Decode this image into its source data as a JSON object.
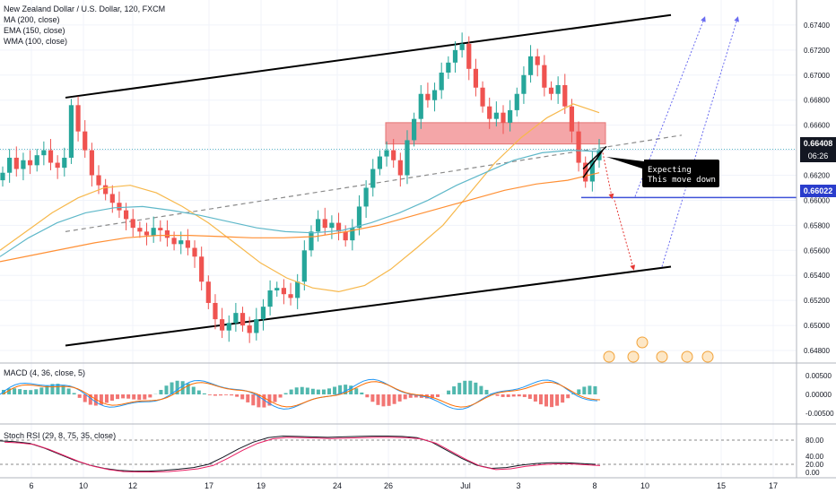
{
  "legend": {
    "title": "New Zealand Dollar / U.S. Dollar, 120, FXCM",
    "ma": "MA (200, close)",
    "ema": "EMA (150, close)",
    "wma": "WMA (100, close)"
  },
  "macd_label": "MACD (4, 36, close, 5)",
  "stoch_label": "Stoch RSI (29, 8, 75, 35, close)",
  "annotation": [
    "Expecting",
    "This move down"
  ],
  "badges": {
    "current_price": "0.66408",
    "countdown": "06:26",
    "target_price": "0.66022"
  },
  "colors": {
    "up": "#26a69a",
    "down": "#ef5350",
    "ma": "#f7b84b",
    "ema": "#5fb8c9",
    "wma": "#ff9035",
    "channel": "#000000",
    "zone": "#f4a6a8",
    "target_line": "#3f51d8",
    "projection": "#6a6cf0",
    "price_badge": "#131722",
    "target_badge": "#2a3dcc"
  },
  "chart_data": [
    {
      "type": "candlestick",
      "title": "New Zealand Dollar / U.S. Dollar, 120, FXCM",
      "ylim": [
        0.647,
        0.676
      ],
      "y_ticks": [
        "0.67400",
        "0.67200",
        "0.67000",
        "0.66800",
        "0.66600",
        "0.66400",
        "0.66200",
        "0.66000",
        "0.65800",
        "0.65600",
        "0.65400",
        "0.65200",
        "0.65000",
        "0.64800"
      ],
      "x_ticks": [
        "6",
        "10",
        "12",
        "17",
        "19",
        "24",
        "26",
        "Jul",
        "3",
        "8",
        "10",
        "15",
        "17"
      ],
      "series_close": [
        0.6622,
        0.6634,
        0.6625,
        0.6632,
        0.6628,
        0.6636,
        0.664,
        0.663,
        0.6626,
        0.6634,
        0.6676,
        0.6655,
        0.664,
        0.662,
        0.6612,
        0.6605,
        0.6598,
        0.6592,
        0.6585,
        0.6578,
        0.6575,
        0.6572,
        0.6578,
        0.6576,
        0.657,
        0.6565,
        0.6568,
        0.6562,
        0.6555,
        0.6535,
        0.6518,
        0.6505,
        0.6496,
        0.6502,
        0.651,
        0.65,
        0.6494,
        0.6505,
        0.6515,
        0.6528,
        0.653,
        0.6525,
        0.6522,
        0.6535,
        0.656,
        0.6575,
        0.6585,
        0.6578,
        0.6582,
        0.6575,
        0.6568,
        0.6578,
        0.6595,
        0.661,
        0.6625,
        0.6635,
        0.664,
        0.6632,
        0.662,
        0.6648,
        0.6665,
        0.6685,
        0.668,
        0.6688,
        0.6702,
        0.671,
        0.672,
        0.6725,
        0.6705,
        0.669,
        0.6675,
        0.6665,
        0.667,
        0.6662,
        0.6672,
        0.6685,
        0.67,
        0.6715,
        0.6708,
        0.669,
        0.6685,
        0.6692,
        0.6675,
        0.6655,
        0.663,
        0.6615,
        0.6632,
        0.664
      ],
      "ma_200": [
        0.656,
        0.6575,
        0.659,
        0.6602,
        0.661,
        0.6612,
        0.6606,
        0.6595,
        0.6582,
        0.6566,
        0.655,
        0.6538,
        0.653,
        0.6527,
        0.6532,
        0.6545,
        0.6562,
        0.658,
        0.6605,
        0.663,
        0.665,
        0.6666,
        0.6677,
        0.667
      ],
      "ema_150": [
        0.6555,
        0.657,
        0.6582,
        0.659,
        0.6594,
        0.6595,
        0.6592,
        0.6588,
        0.6583,
        0.6578,
        0.6575,
        0.6574,
        0.6576,
        0.6582,
        0.659,
        0.66,
        0.6612,
        0.6622,
        0.6632,
        0.6638,
        0.664,
        0.6639
      ],
      "wma_100": [
        0.6551,
        0.6556,
        0.6561,
        0.6566,
        0.657,
        0.6572,
        0.6572,
        0.6571,
        0.657,
        0.657,
        0.6571,
        0.6575,
        0.658,
        0.6587,
        0.6594,
        0.6601,
        0.6608,
        0.6613,
        0.6616,
        0.6622
      ]
    },
    {
      "type": "bar",
      "title": "MACD (4, 36, close, 5)",
      "ylim": [
        -0.0065,
        0.0065
      ],
      "y_ticks": [
        "0.00500",
        "0.00000",
        "-0.00500"
      ]
    },
    {
      "type": "line",
      "title": "Stoch RSI (29, 8, 75, 35, close)",
      "ylim": [
        -5,
        100
      ],
      "y_ticks": [
        "80.00",
        "40.00",
        "20.00",
        "0.00"
      ]
    }
  ]
}
